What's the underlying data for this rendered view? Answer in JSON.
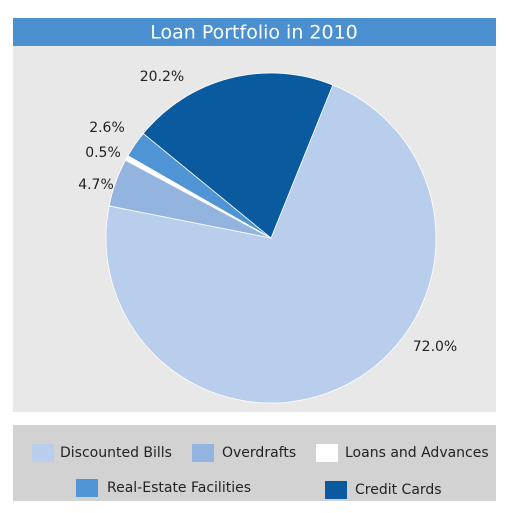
{
  "chart_data": {
    "type": "pie",
    "title": "Loan Portfolio in 2010",
    "categories": [
      "Discounted Bills",
      "Overdrafts",
      "Loans and Advances",
      "Real-Estate Facilities",
      "Credit Cards"
    ],
    "values": [
      72.0,
      4.7,
      0.5,
      2.6,
      20.2
    ],
    "value_labels": [
      "72.0%",
      "4.7%",
      "0.5%",
      "2.6%",
      "20.2%"
    ],
    "colors": [
      "#b9cded",
      "#94b4e0",
      "#ffffff",
      "#4f94d4",
      "#0a5aa0"
    ],
    "legend": "bottom"
  }
}
